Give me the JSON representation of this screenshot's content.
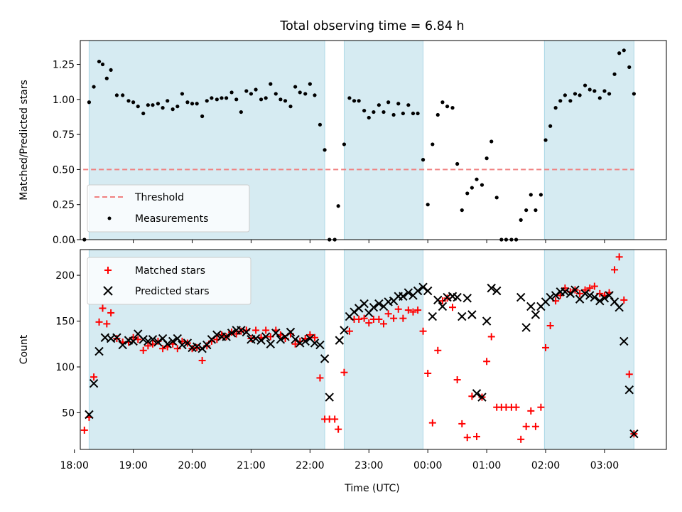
{
  "chart_data": [
    {
      "type": "scatter",
      "title": "Total observing time = 6.84 h",
      "ylabel": "Matched/Predicted stars",
      "xlabel": "",
      "xlim": [
        18.1,
        28.05
      ],
      "ylim": [
        0.0,
        1.42
      ],
      "yticks": [
        "0.00",
        "0.25",
        "0.50",
        "0.75",
        "1.00",
        "1.25"
      ],
      "ytick_values": [
        0.0,
        0.25,
        0.5,
        0.75,
        1.0,
        1.25
      ],
      "shaded_intervals": [
        [
          18.25,
          22.25
        ],
        [
          22.58,
          23.92
        ],
        [
          25.98,
          27.5
        ]
      ],
      "threshold": {
        "name": "Threshold",
        "value": 0.5,
        "x_start": 18.15,
        "x_end": 27.5,
        "color": "#f08080"
      },
      "series": [
        {
          "name": "Measurements",
          "color": "#000000",
          "x": [
            18.17,
            18.25,
            18.33,
            18.42,
            18.48,
            18.55,
            18.62,
            18.72,
            18.82,
            18.92,
            19.0,
            19.08,
            19.17,
            19.25,
            19.33,
            19.42,
            19.5,
            19.58,
            19.67,
            19.75,
            19.83,
            19.92,
            20.0,
            20.08,
            20.17,
            20.25,
            20.33,
            20.42,
            20.5,
            20.58,
            20.67,
            20.75,
            20.83,
            20.92,
            21.0,
            21.08,
            21.17,
            21.25,
            21.33,
            21.42,
            21.5,
            21.58,
            21.67,
            21.75,
            21.83,
            21.92,
            22.0,
            22.08,
            22.17,
            22.25,
            22.33,
            22.42,
            22.48,
            22.58,
            22.67,
            22.75,
            22.83,
            22.92,
            23.0,
            23.08,
            23.17,
            23.25,
            23.33,
            23.42,
            23.5,
            23.58,
            23.67,
            23.75,
            23.83,
            23.92,
            24.0,
            24.08,
            24.17,
            24.25,
            24.33,
            24.42,
            24.5,
            24.58,
            24.67,
            24.75,
            24.83,
            24.92,
            25.0,
            25.08,
            25.17,
            25.25,
            25.33,
            25.42,
            25.5,
            25.58,
            25.67,
            25.75,
            25.83,
            25.92,
            26.0,
            26.08,
            26.17,
            26.25,
            26.33,
            26.42,
            26.5,
            26.58,
            26.67,
            26.75,
            26.83,
            26.92,
            27.0,
            27.08,
            27.17,
            27.25,
            27.33,
            27.42,
            27.5
          ],
          "y": [
            0.0,
            0.98,
            1.09,
            1.27,
            1.25,
            1.15,
            1.21,
            1.03,
            1.03,
            0.99,
            0.98,
            0.95,
            0.9,
            0.96,
            0.96,
            0.97,
            0.94,
            0.99,
            0.93,
            0.95,
            1.04,
            0.98,
            0.97,
            0.97,
            0.88,
            0.99,
            1.01,
            1.0,
            1.01,
            1.01,
            1.05,
            1.0,
            0.91,
            1.06,
            1.04,
            1.07,
            1.0,
            1.01,
            1.11,
            1.04,
            1.0,
            0.99,
            0.95,
            1.09,
            1.05,
            1.04,
            1.11,
            1.03,
            0.82,
            0.64,
            0.0,
            0.0,
            0.24,
            0.68,
            1.01,
            0.99,
            0.99,
            0.92,
            0.87,
            0.91,
            0.96,
            0.91,
            0.98,
            0.89,
            0.97,
            0.9,
            0.96,
            0.9,
            0.9,
            0.57,
            0.25,
            0.68,
            0.89,
            0.98,
            0.95,
            0.94,
            0.54,
            0.21,
            0.33,
            0.37,
            0.43,
            0.39,
            0.58,
            0.7,
            0.3,
            0.0,
            0.0,
            0.0,
            0.0,
            0.14,
            0.21,
            0.32,
            0.21,
            0.32,
            0.71,
            0.81,
            0.94,
            0.99,
            1.03,
            0.99,
            1.04,
            1.03,
            1.1,
            1.07,
            1.06,
            1.01,
            1.06,
            1.04,
            1.18,
            1.33,
            1.35,
            1.23,
            1.04
          ]
        }
      ],
      "legend": [
        "Threshold",
        "Measurements"
      ],
      "legend_position": "lower-left"
    },
    {
      "type": "scatter",
      "title": "",
      "ylabel": "Count",
      "xlabel": "Time (UTC)",
      "xlim": [
        18.1,
        28.05
      ],
      "ylim": [
        10,
        228
      ],
      "yticks": [
        "50",
        "100",
        "150",
        "200"
      ],
      "ytick_values": [
        50,
        100,
        150,
        200
      ],
      "xticks": [
        "18:00",
        "19:00",
        "20:00",
        "21:00",
        "22:00",
        "23:00",
        "00:00",
        "01:00",
        "02:00",
        "03:00"
      ],
      "xtick_values": [
        18,
        19,
        20,
        21,
        22,
        23,
        24,
        25,
        26,
        27
      ],
      "shaded_intervals": [
        [
          18.25,
          22.25
        ],
        [
          22.58,
          23.92
        ],
        [
          25.98,
          27.5
        ]
      ],
      "series": [
        {
          "name": "Matched stars",
          "color": "#ff0000",
          "marker": "plus",
          "x": [
            18.17,
            18.25,
            18.33,
            18.42,
            18.48,
            18.55,
            18.62,
            18.72,
            18.82,
            18.92,
            19.0,
            19.08,
            19.17,
            19.25,
            19.33,
            19.42,
            19.5,
            19.58,
            19.67,
            19.75,
            19.83,
            19.92,
            20.0,
            20.08,
            20.17,
            20.25,
            20.33,
            20.42,
            20.5,
            20.58,
            20.67,
            20.75,
            20.83,
            20.92,
            21.0,
            21.08,
            21.17,
            21.25,
            21.33,
            21.42,
            21.5,
            21.58,
            21.67,
            21.75,
            21.83,
            21.92,
            22.0,
            22.08,
            22.17,
            22.25,
            22.33,
            22.42,
            22.48,
            22.58,
            22.67,
            22.75,
            22.83,
            22.92,
            23.0,
            23.08,
            23.17,
            23.25,
            23.33,
            23.42,
            23.5,
            23.58,
            23.67,
            23.75,
            23.83,
            23.92,
            24.0,
            24.08,
            24.17,
            24.25,
            24.33,
            24.42,
            24.5,
            24.58,
            24.67,
            24.75,
            24.83,
            24.92,
            25.0,
            25.08,
            25.17,
            25.25,
            25.33,
            25.42,
            25.5,
            25.58,
            25.67,
            25.75,
            25.83,
            25.92,
            26.0,
            26.08,
            26.17,
            26.25,
            26.33,
            26.42,
            26.5,
            26.58,
            26.67,
            26.75,
            26.83,
            26.92,
            27.0,
            27.08,
            27.17,
            27.25,
            27.33,
            27.42,
            27.5
          ],
          "y": [
            31,
            45,
            89,
            149,
            164,
            147,
            159,
            131,
            127,
            127,
            132,
            130,
            118,
            123,
            125,
            128,
            120,
            122,
            125,
            120,
            128,
            126,
            120,
            121,
            107,
            123,
            128,
            130,
            135,
            133,
            138,
            136,
            139,
            140,
            131,
            140,
            132,
            140,
            133,
            140,
            135,
            131,
            136,
            125,
            128,
            131,
            135,
            132,
            88,
            43,
            43,
            43,
            32,
            94,
            139,
            152,
            152,
            153,
            148,
            152,
            152,
            147,
            158,
            153,
            163,
            153,
            162,
            160,
            162,
            139,
            93,
            39,
            118,
            172,
            175,
            165,
            86,
            38,
            23,
            68,
            24,
            67,
            106,
            133,
            56,
            56,
            56,
            56,
            56,
            21,
            35,
            52,
            35,
            56,
            121,
            145,
            172,
            178,
            186,
            182,
            184,
            180,
            184,
            186,
            188,
            180,
            178,
            181,
            206,
            220,
            173,
            92,
            27
          ]
        },
        {
          "name": "Predicted stars",
          "color": "#000000",
          "marker": "x",
          "x": [
            18.25,
            18.33,
            18.42,
            18.52,
            18.62,
            18.72,
            18.82,
            18.92,
            19.0,
            19.08,
            19.17,
            19.25,
            19.33,
            19.42,
            19.5,
            19.58,
            19.67,
            19.75,
            19.83,
            19.92,
            20.0,
            20.08,
            20.17,
            20.25,
            20.33,
            20.42,
            20.5,
            20.58,
            20.67,
            20.75,
            20.83,
            20.92,
            21.0,
            21.08,
            21.17,
            21.25,
            21.33,
            21.42,
            21.5,
            21.58,
            21.67,
            21.75,
            21.83,
            21.92,
            22.0,
            22.08,
            22.17,
            22.25,
            22.33,
            22.5,
            22.58,
            22.67,
            22.75,
            22.83,
            22.92,
            23.0,
            23.08,
            23.17,
            23.25,
            23.33,
            23.42,
            23.5,
            23.58,
            23.67,
            23.75,
            23.83,
            23.92,
            24.0,
            24.08,
            24.17,
            24.25,
            24.33,
            24.42,
            24.5,
            24.58,
            24.67,
            24.75,
            24.83,
            24.92,
            25.0,
            25.08,
            25.17,
            25.58,
            25.67,
            25.75,
            25.83,
            25.92,
            26.0,
            26.08,
            26.17,
            26.25,
            26.33,
            26.42,
            26.5,
            26.58,
            26.67,
            26.75,
            26.83,
            26.92,
            27.0,
            27.08,
            27.17,
            27.25,
            27.33,
            27.42,
            27.5
          ],
          "y": [
            48,
            82,
            117,
            132,
            131,
            132,
            124,
            129,
            128,
            136,
            130,
            128,
            130,
            127,
            131,
            125,
            128,
            131,
            124,
            126,
            121,
            122,
            120,
            124,
            130,
            135,
            133,
            133,
            137,
            140,
            140,
            138,
            130,
            131,
            129,
            133,
            125,
            137,
            130,
            133,
            138,
            130,
            126,
            128,
            131,
            126,
            124,
            109,
            67,
            129,
            140,
            155,
            160,
            164,
            169,
            159,
            165,
            169,
            166,
            171,
            172,
            177,
            177,
            181,
            178,
            183,
            187,
            183,
            155,
            173,
            166,
            176,
            177,
            176,
            155,
            175,
            157,
            71,
            67,
            150,
            186,
            183,
            176,
            143,
            166,
            157,
            166,
            171,
            176,
            178,
            182,
            182,
            180,
            184,
            174,
            180,
            178,
            176,
            172,
            175,
            178,
            171,
            165,
            128,
            75,
            27
          ]
        }
      ],
      "legend": [
        "Matched stars",
        "Predicted stars"
      ],
      "legend_position": "upper-left"
    }
  ]
}
